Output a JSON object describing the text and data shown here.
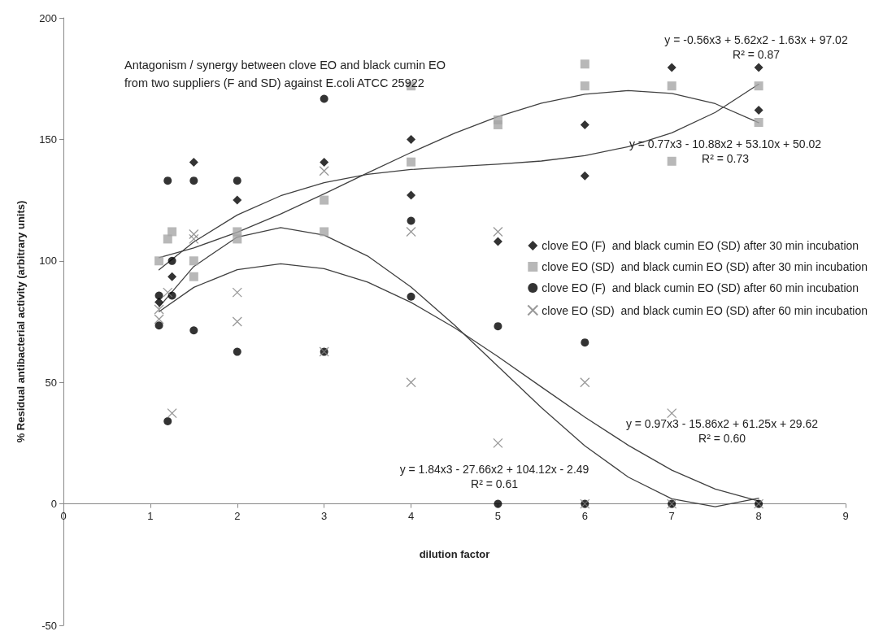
{
  "chart_data": {
    "type": "scatter",
    "title": "Antagonism / synergy between clove EO and black cumin EO\nfrom two suppliers (F and SD) against E.coli ATCC 25922",
    "xlabel": "dilution factor",
    "ylabel": "% Residual antibacterial activity (arbitrary units)",
    "xlim": [
      0,
      9
    ],
    "xticks": [
      0,
      1,
      2,
      3,
      4,
      5,
      6,
      7,
      8,
      9
    ],
    "ylim": [
      -50,
      200
    ],
    "yticks": [
      -50,
      0,
      50,
      100,
      150,
      200
    ],
    "grid": false,
    "legend": "right",
    "series": [
      {
        "name": "clove EO (F)  and black cumin EO (SD) after 30 min incubation",
        "color": "#000000",
        "marker": "diamond",
        "x": [
          1.1,
          1.25,
          1.5,
          2,
          3,
          4,
          4,
          5,
          6,
          6,
          7,
          8,
          8
        ],
        "values": [
          83,
          93.5,
          140.6,
          125,
          140.6,
          150,
          127,
          108,
          156,
          135,
          179.6,
          179.6,
          162
        ]
      },
      {
        "name": "clove EO (SD)  and black cumin EO (SD) after 30 min incubation",
        "color": "#a6a6a6",
        "marker": "square",
        "x": [
          1.1,
          1.2,
          1.25,
          1.5,
          1.5,
          2,
          2,
          3,
          3,
          4,
          4,
          5,
          5,
          6,
          6,
          7,
          7,
          8,
          8
        ],
        "values": [
          100,
          109,
          112,
          100,
          93.5,
          112,
          109,
          125,
          112,
          172,
          140.7,
          158,
          156,
          181,
          172,
          172,
          141,
          172,
          157
        ]
      },
      {
        "name": "clove EO (F)  and black cumin EO (SD) after 60 min incubation",
        "color": "#000000",
        "marker": "circle",
        "x": [
          1.1,
          1.1,
          1.2,
          1.2,
          1.25,
          1.25,
          1.5,
          1.5,
          2,
          2,
          3,
          3,
          4,
          4,
          5,
          5,
          6,
          6,
          7,
          8
        ],
        "values": [
          85.7,
          73.4,
          133,
          34,
          100,
          85.7,
          133,
          71.4,
          133,
          62.6,
          166.7,
          62.6,
          116.5,
          85.3,
          73.1,
          0,
          66.4,
          0,
          0,
          0
        ]
      },
      {
        "name": "clove EO (SD)  and black cumin EO (SD) after 60 min incubation",
        "color": "#808080",
        "marker": "cross",
        "x": [
          1.1,
          1.1,
          1.2,
          1.25,
          1.5,
          1.5,
          2,
          2,
          3,
          3,
          4,
          4,
          5,
          5,
          6,
          6,
          7,
          7,
          8
        ],
        "values": [
          80,
          76,
          87,
          37.3,
          111,
          109,
          87,
          75,
          137,
          62.6,
          112,
          50,
          112,
          25,
          50,
          0,
          37.3,
          0,
          0
        ]
      },
      {
        "type": "line",
        "color": "#404040",
        "marker": "none",
        "x": [
          1.1,
          1.5,
          2,
          2.5,
          3,
          3.5,
          4,
          4.5,
          5,
          5.5,
          6,
          6.5,
          7,
          7.5,
          8
        ],
        "values": [
          101.3,
          105.3,
          111.8,
          119.3,
          127.6,
          136.2,
          144.6,
          152.5,
          159.4,
          164.9,
          168.6,
          170.1,
          168.9,
          164.7,
          156.9
        ]
      },
      {
        "type": "line",
        "color": "#404040",
        "marker": "none",
        "x": [
          1.1,
          1.5,
          2,
          2.5,
          3,
          3.5,
          4,
          4.5,
          5,
          5.5,
          6,
          6.5,
          7,
          7.5,
          8
        ],
        "values": [
          96.3,
          107.8,
          118.9,
          126.8,
          132.2,
          135.6,
          137.6,
          138.8,
          139.8,
          141.1,
          143.3,
          147,
          152.7,
          161.1,
          172.7
        ]
      },
      {
        "type": "line",
        "color": "#404040",
        "marker": "none",
        "x": [
          1.1,
          1.5,
          2,
          2.5,
          3,
          3.5,
          4,
          4.5,
          5,
          5.5,
          6,
          6.5,
          7,
          7.5,
          8
        ],
        "values": [
          81,
          97.7,
          109.8,
          113.7,
          110.6,
          102,
          89.2,
          73.6,
          56.6,
          39.6,
          23.9,
          11,
          2.1,
          -1.2,
          2.3
        ]
      },
      {
        "type": "line",
        "color": "#404040",
        "marker": "none",
        "x": [
          1.1,
          1.5,
          2,
          2.5,
          3,
          3.5,
          4,
          4.5,
          5,
          5.5,
          6,
          6.5,
          7,
          7.5,
          8
        ],
        "values": [
          79.1,
          89.1,
          96.4,
          98.8,
          96.8,
          91.3,
          82.9,
          72.5,
          60.6,
          48.1,
          35.7,
          24.1,
          13.9,
          6.1,
          1.2
        ]
      }
    ],
    "annotations": [
      "y = -0.56x3 + 5.62x2 - 1.63x + 97.02\nR² = 0.87",
      "y = 0.77x3 - 10.88x2 + 53.10x + 50.02\nR² = 0.73",
      "y = 1.84x3 - 27.66x2 + 104.12x - 2.49\nR² = 0.61",
      "y = 0.97x3 - 15.86x2 + 61.25x + 29.62\nR² = 0.60"
    ]
  }
}
